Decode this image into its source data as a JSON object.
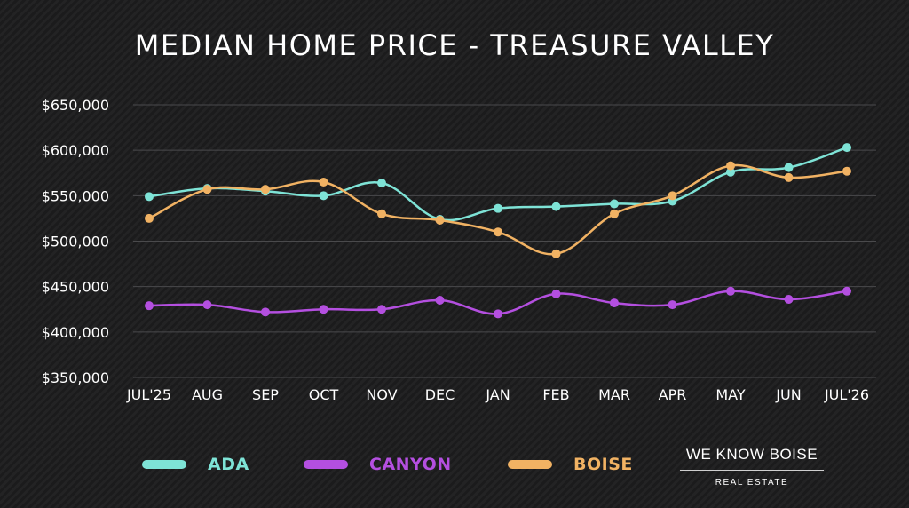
{
  "chart_data": {
    "type": "line",
    "title": "MEDIAN HOME PRICE - TREASURE VALLEY",
    "categories": [
      "JUL'25",
      "AUG",
      "SEP",
      "OCT",
      "NOV",
      "DEC",
      "JAN",
      "FEB",
      "MAR",
      "APR",
      "MAY",
      "JUN",
      "JUL'26"
    ],
    "ylim": [
      350000,
      650000
    ],
    "yticks": [
      350000,
      400000,
      450000,
      500000,
      550000,
      600000,
      650000
    ],
    "ytick_labels": [
      "$350,000",
      "$400,000",
      "$450,000",
      "$500,000",
      "$550,000",
      "$600,000",
      "$650,000"
    ],
    "grid": true,
    "legend_position": "bottom",
    "series": [
      {
        "name": "ADA",
        "color": "#7ee3d6",
        "values": [
          549000,
          558000,
          555000,
          550000,
          564000,
          524000,
          536000,
          538000,
          541000,
          544000,
          576000,
          581000,
          603000
        ]
      },
      {
        "name": "CANYON",
        "color": "#b44fe0",
        "values": [
          429000,
          430000,
          422000,
          425000,
          425000,
          435000,
          420000,
          442000,
          432000,
          430000,
          445000,
          436000,
          445000
        ]
      },
      {
        "name": "BOISE",
        "color": "#f1b263",
        "values": [
          525000,
          557000,
          557000,
          565000,
          530000,
          523000,
          510000,
          486000,
          530000,
          550000,
          583000,
          570000,
          577000
        ]
      }
    ]
  },
  "brand": {
    "name": "WE KNOW BOISE",
    "subtitle": "REAL ESTATE"
  }
}
